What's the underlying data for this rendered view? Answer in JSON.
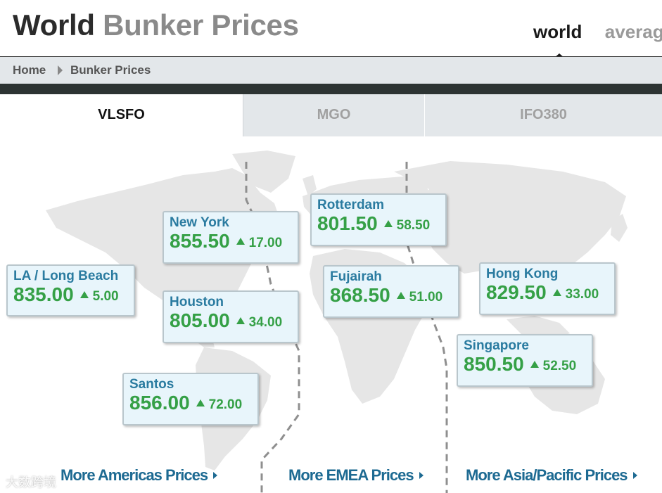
{
  "header": {
    "title_part1": "World",
    "title_part2": "Bunker Prices",
    "nav": {
      "world": "world",
      "average": "averag"
    }
  },
  "breadcrumb": {
    "home": "Home",
    "current": "Bunker Prices"
  },
  "tabs": [
    {
      "label": "VLSFO",
      "active": true
    },
    {
      "label": "MGO",
      "active": false
    },
    {
      "label": "IFO380",
      "active": false
    }
  ],
  "ports": {
    "la": {
      "name": "LA / Long Beach",
      "price": "835.00",
      "change": "5.00"
    },
    "new_york": {
      "name": "New York",
      "price": "855.50",
      "change": "17.00"
    },
    "houston": {
      "name": "Houston",
      "price": "805.00",
      "change": "34.00"
    },
    "santos": {
      "name": "Santos",
      "price": "856.00",
      "change": "72.00"
    },
    "rotterdam": {
      "name": "Rotterdam",
      "price": "801.50",
      "change": "58.50"
    },
    "fujairah": {
      "name": "Fujairah",
      "price": "868.50",
      "change": "51.00"
    },
    "hong_kong": {
      "name": "Hong Kong",
      "price": "829.50",
      "change": "33.00"
    },
    "singapore": {
      "name": "Singapore",
      "price": "850.50",
      "change": "52.50"
    }
  },
  "region_links": {
    "americas": "More Americas Prices",
    "emea": "More EMEA Prices",
    "asia": "More Asia/Pacific Prices"
  },
  "watermark": "大数跨境",
  "colors": {
    "price_green": "#35a046",
    "port_blue": "#2a7ba0",
    "link_blue": "#1d6a92",
    "tab_bg": "#e3e7ea",
    "band_dark": "#2d3433"
  },
  "icons": {
    "price_up": "triangle-up-icon",
    "breadcrumb_sep": "chevron-right-icon",
    "link_arrow": "triangle-right-icon"
  }
}
